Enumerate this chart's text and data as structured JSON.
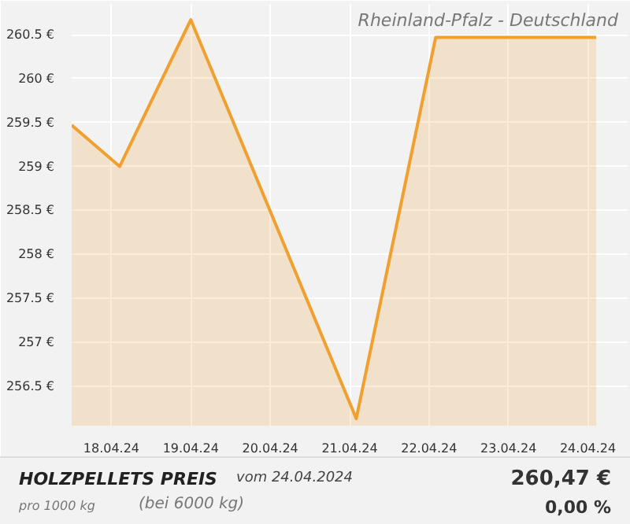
{
  "chart_data": {
    "type": "area",
    "title": "HOLZPELLETS PREIS",
    "subtitle": "Rheinland-Pfalz - Deutschland",
    "annotations": [
      "vom 24.04.2024",
      "pro 1000 kg",
      "(bei 6000 kg)",
      "260,47 €",
      "0,00 %"
    ],
    "x": [
      "2024-04-17T12:00",
      "2024-04-18T02:30",
      "2024-04-19T00:00",
      "2024-04-21T02:00",
      "2024-04-22T02:00",
      "2024-04-24T02:30"
    ],
    "series": [
      {
        "color": "#f0a030",
        "values": [
          259.47,
          259.0,
          260.67,
          256.13,
          260.47,
          260.47
        ]
      }
    ],
    "xlim": [
      "2024-04-17T12:00",
      "2024-04-24T12:00"
    ],
    "xticks": [
      {
        "value": "2024-04-18",
        "label": "18.04.24"
      },
      {
        "value": "2024-04-19",
        "label": "19.04.24"
      },
      {
        "value": "2024-04-20",
        "label": "20.04.24"
      },
      {
        "value": "2024-04-21",
        "label": "21.04.24"
      },
      {
        "value": "2024-04-22",
        "label": "22.04.24"
      },
      {
        "value": "2024-04-23",
        "label": "23.04.24"
      },
      {
        "value": "2024-04-24",
        "label": "24.04.24"
      }
    ],
    "ylim": [
      256.05,
      260.85
    ],
    "yticks": [
      {
        "value": 256.5,
        "label": "256.5 €"
      },
      {
        "value": 257,
        "label": "257 €"
      },
      {
        "value": 257.5,
        "label": "257.5 €"
      },
      {
        "value": 258,
        "label": "258 €"
      },
      {
        "value": 258.5,
        "label": "258.5 €"
      },
      {
        "value": 259,
        "label": "259 €"
      },
      {
        "value": 259.5,
        "label": "259.5 €"
      },
      {
        "value": 260,
        "label": "260 €"
      },
      {
        "value": 260.5,
        "label": "260.5 €"
      }
    ],
    "grid": true
  }
}
